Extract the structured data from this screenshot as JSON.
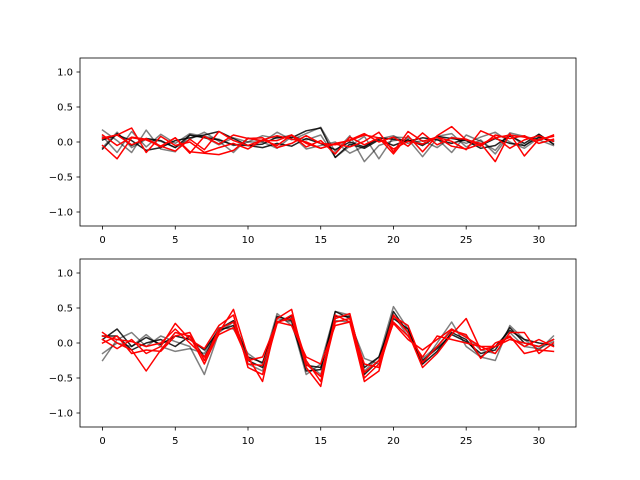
{
  "colors": {
    "gray_series": "#000000",
    "red_series": "#ff0000",
    "frame": "#000000",
    "background": "#ffffff"
  },
  "chart_data": [
    {
      "type": "line",
      "title": "",
      "xlabel": "",
      "ylabel": "",
      "xlim": [
        -1.55,
        32.55
      ],
      "ylim": [
        -1.2,
        1.2
      ],
      "xticks": [
        0,
        5,
        10,
        15,
        20,
        25,
        30
      ],
      "yticks": [
        -1.0,
        -0.5,
        0.0,
        0.5,
        1.0
      ],
      "xtick_labels": [
        "0",
        "5",
        "10",
        "15",
        "20",
        "25",
        "30"
      ],
      "ytick_labels": [
        "−1.0",
        "−0.5",
        "0.0",
        "0.5",
        "1.0"
      ],
      "grid": false,
      "x": [
        0,
        1,
        2,
        3,
        4,
        5,
        6,
        7,
        8,
        9,
        10,
        11,
        12,
        13,
        14,
        15,
        16,
        17,
        18,
        19,
        20,
        21,
        22,
        23,
        24,
        25,
        26,
        27,
        28,
        29,
        30,
        31
      ],
      "series": [
        {
          "group": "gray",
          "opacity": 0.5,
          "values": [
            0.17,
            0.02,
            -0.15,
            0.17,
            -0.1,
            -0.14,
            0.1,
            0.07,
            -0.04,
            0.06,
            0.0,
            0.0,
            0.14,
            0.03,
            0.12,
            0.21,
            -0.14,
            0.09,
            -0.28,
            -0.05,
            0.02,
            0.04,
            -0.21,
            0.05,
            -0.15,
            0.1,
            0.01,
            -0.12,
            0.13,
            0.08,
            0.03,
            -0.05
          ]
        },
        {
          "group": "gray",
          "opacity": 0.5,
          "values": [
            -0.08,
            0.14,
            -0.08,
            0.04,
            0.01,
            -0.08,
            0.04,
            0.14,
            0.01,
            -0.15,
            0.06,
            0.0,
            -0.09,
            0.08,
            0.03,
            0.1,
            -0.22,
            -0.06,
            0.08,
            -0.24,
            0.07,
            0.06,
            -0.03,
            0.08,
            0.12,
            -0.07,
            0.03,
            -0.17,
            0.11,
            -0.06,
            0.11,
            -0.03
          ]
        },
        {
          "group": "gray",
          "opacity": 0.5,
          "values": [
            0.08,
            -0.15,
            0.15,
            -0.07,
            0.11,
            -0.02,
            0.12,
            0.08,
            0.04,
            -0.05,
            0.0,
            0.09,
            0.05,
            0.1,
            -0.1,
            -0.05,
            0.0,
            -0.16,
            -0.06,
            0.04,
            0.09,
            -0.02,
            0.02,
            -0.08,
            0.07,
            -0.02,
            0.07,
            0.14,
            0.0,
            -0.09,
            0.06,
            0.02
          ]
        },
        {
          "group": "gray",
          "opacity": 0.85,
          "values": [
            -0.1,
            0.12,
            -0.05,
            0.05,
            0.02,
            -0.08,
            0.1,
            0.06,
            0.03,
            -0.04,
            -0.05,
            -0.03,
            0.07,
            0.06,
            0.16,
            0.2,
            -0.22,
            -0.03,
            -0.09,
            0.03,
            -0.05,
            0.03,
            -0.05,
            0.08,
            0.05,
            0.02,
            -0.09,
            -0.05,
            0.09,
            -0.02,
            0.11,
            -0.03
          ]
        },
        {
          "group": "gray",
          "opacity": 0.85,
          "values": [
            0.03,
            0.1,
            0.02,
            -0.12,
            -0.08,
            0.02,
            0.06,
            0.1,
            0.15,
            0.05,
            -0.05,
            -0.08,
            -0.02,
            -0.06,
            0.05,
            -0.02,
            -0.11,
            0.0,
            -0.07,
            0.06,
            0.04,
            0.01,
            0.06,
            0.03,
            -0.02,
            0.04,
            -0.05,
            0.05,
            -0.02,
            -0.05,
            0.07,
            0.01
          ]
        },
        {
          "group": "red",
          "opacity": 1,
          "values": [
            -0.05,
            -0.24,
            0.06,
            0.03,
            -0.06,
            -0.13,
            0.04,
            -0.11,
            0.15,
            0.02,
            -0.05,
            0.03,
            0.09,
            0.04,
            0.0,
            -0.09,
            -0.03,
            -0.07,
            0.01,
            0.14,
            -0.14,
            0.15,
            0.01,
            0.07,
            0.01,
            -0.11,
            0.16,
            0.07,
            -0.09,
            0.03,
            0.09,
            0.01
          ]
        },
        {
          "group": "red",
          "opacity": 1,
          "values": [
            0.05,
            0.1,
            0.2,
            -0.15,
            0.08,
            -0.05,
            0.0,
            -0.15,
            -0.08,
            -0.02,
            -0.1,
            0.03,
            -0.05,
            0.1,
            -0.07,
            0.02,
            -0.17,
            0.07,
            -0.04,
            0.06,
            -0.17,
            0.09,
            -0.14,
            0.09,
            0.22,
            0.03,
            -0.02,
            -0.28,
            0.12,
            -0.2,
            0.04,
            0.08
          ]
        },
        {
          "group": "red",
          "opacity": 1,
          "values": [
            0.1,
            -0.05,
            0.07,
            0.04,
            -0.07,
            0.06,
            -0.16,
            0.08,
            -0.03,
            0.1,
            0.05,
            0.06,
            -0.08,
            -0.02,
            0.09,
            -0.02,
            -0.04,
            0.03,
            0.12,
            0.0,
            0.07,
            -0.06,
            0.13,
            -0.04,
            0.06,
            0.04,
            -0.06,
            0.1,
            0.05,
            0.09,
            -0.02,
            0.04
          ]
        },
        {
          "group": "red",
          "opacity": 1,
          "values": [
            0.06,
            0.1,
            -0.04,
            0.05,
            -0.06,
            0.06,
            -0.14,
            -0.16,
            -0.18,
            -0.12,
            0.05,
            0.02,
            0.02,
            0.1,
            -0.02,
            -0.09,
            -0.02,
            0.02,
            0.1,
            0.06,
            -0.1,
            0.01,
            -0.03,
            0.07,
            -0.06,
            -0.1,
            -0.03,
            0.06,
            0.1,
            0.07,
            0.02,
            0.1
          ]
        }
      ]
    },
    {
      "type": "line",
      "title": "",
      "xlabel": "",
      "ylabel": "",
      "xlim": [
        -1.55,
        32.55
      ],
      "ylim": [
        -1.2,
        1.2
      ],
      "xticks": [
        0,
        5,
        10,
        15,
        20,
        25,
        30
      ],
      "yticks": [
        -1.0,
        -0.5,
        0.0,
        0.5,
        1.0
      ],
      "xtick_labels": [
        "0",
        "5",
        "10",
        "15",
        "20",
        "25",
        "30"
      ],
      "ytick_labels": [
        "−1.0",
        "−0.5",
        "0.0",
        "0.5",
        "1.0"
      ],
      "grid": false,
      "x": [
        0,
        1,
        2,
        3,
        4,
        5,
        6,
        7,
        8,
        9,
        10,
        11,
        12,
        13,
        14,
        15,
        16,
        17,
        18,
        19,
        20,
        21,
        22,
        23,
        24,
        25,
        26,
        27,
        28,
        29,
        30,
        31
      ],
      "series": [
        {
          "group": "gray",
          "opacity": 0.5,
          "values": [
            -0.25,
            0.05,
            0.15,
            -0.05,
            0.1,
            0.02,
            -0.05,
            -0.45,
            0.15,
            0.3,
            -0.3,
            -0.4,
            0.35,
            0.3,
            -0.45,
            -0.3,
            0.45,
            0.4,
            -0.4,
            -0.2,
            0.52,
            0.2,
            -0.3,
            0.0,
            0.3,
            -0.05,
            -0.2,
            -0.25,
            0.25,
            0.05,
            -0.1,
            0.1
          ]
        },
        {
          "group": "gray",
          "opacity": 0.5,
          "values": [
            -0.15,
            0.0,
            -0.05,
            0.12,
            -0.05,
            -0.12,
            -0.08,
            -0.15,
            0.22,
            0.2,
            -0.15,
            -0.3,
            0.42,
            0.25,
            -0.28,
            -0.45,
            0.32,
            0.3,
            -0.22,
            -0.3,
            0.4,
            0.1,
            -0.22,
            -0.05,
            0.2,
            0.1,
            -0.1,
            -0.15,
            0.15,
            -0.05,
            -0.08,
            0.02
          ]
        },
        {
          "group": "gray",
          "opacity": 0.85,
          "values": [
            0.05,
            0.2,
            -0.05,
            0.08,
            -0.02,
            0.1,
            0.05,
            -0.1,
            0.18,
            0.25,
            -0.25,
            -0.35,
            0.38,
            0.32,
            -0.4,
            -0.38,
            0.45,
            0.35,
            -0.45,
            -0.25,
            0.45,
            0.15,
            -0.25,
            -0.08,
            0.12,
            0.02,
            -0.15,
            -0.1,
            0.22,
            0.0,
            -0.05,
            0.05
          ]
        },
        {
          "group": "gray",
          "opacity": 0.85,
          "values": [
            0.1,
            0.1,
            -0.1,
            0.0,
            0.05,
            -0.05,
            0.1,
            -0.2,
            0.2,
            0.32,
            -0.2,
            -0.28,
            0.3,
            0.38,
            -0.32,
            -0.35,
            0.38,
            0.38,
            -0.35,
            -0.2,
            0.35,
            0.2,
            -0.3,
            -0.12,
            0.15,
            0.05,
            -0.2,
            -0.05,
            0.18,
            0.05,
            0.0,
            -0.03
          ]
        },
        {
          "group": "red",
          "opacity": 1,
          "values": [
            0.15,
            0.0,
            -0.1,
            -0.4,
            -0.1,
            0.15,
            0.1,
            -0.3,
            0.15,
            0.48,
            -0.2,
            -0.55,
            0.35,
            0.48,
            -0.35,
            -0.62,
            0.4,
            0.3,
            -0.55,
            -0.4,
            0.4,
            0.15,
            -0.35,
            -0.15,
            0.12,
            0.35,
            -0.1,
            -0.05,
            0.1,
            -0.15,
            -0.1,
            -0.12
          ]
        },
        {
          "group": "red",
          "opacity": 1,
          "values": [
            0.05,
            -0.08,
            0.05,
            -0.15,
            -0.05,
            0.28,
            0.05,
            -0.08,
            0.25,
            0.4,
            -0.35,
            -0.45,
            0.28,
            0.4,
            -0.25,
            -0.55,
            0.3,
            0.35,
            -0.5,
            -0.3,
            0.38,
            0.25,
            -0.28,
            -0.05,
            0.18,
            0.12,
            -0.22,
            0.0,
            0.08,
            -0.05,
            0.05,
            -0.05
          ]
        },
        {
          "group": "red",
          "opacity": 1,
          "values": [
            0.0,
            0.1,
            -0.15,
            -0.1,
            -0.12,
            0.1,
            0.15,
            -0.25,
            0.2,
            0.3,
            -0.3,
            -0.32,
            0.3,
            0.35,
            -0.3,
            -0.48,
            0.35,
            0.42,
            -0.42,
            -0.25,
            0.28,
            0.05,
            -0.1,
            0.05,
            0.2,
            0.08,
            -0.05,
            -0.15,
            0.15,
            0.15,
            -0.15,
            0.0
          ]
        },
        {
          "group": "red",
          "opacity": 1,
          "values": [
            0.1,
            0.05,
            0.02,
            -0.05,
            0.0,
            0.2,
            0.0,
            -0.2,
            0.12,
            0.22,
            -0.25,
            -0.2,
            0.3,
            0.25,
            -0.2,
            -0.3,
            0.25,
            0.3,
            -0.3,
            -0.35,
            0.3,
            0.1,
            -0.2,
            0.1,
            0.05,
            0.0,
            -0.05,
            -0.05,
            0.05,
            0.0,
            -0.05,
            0.05
          ]
        }
      ]
    }
  ]
}
